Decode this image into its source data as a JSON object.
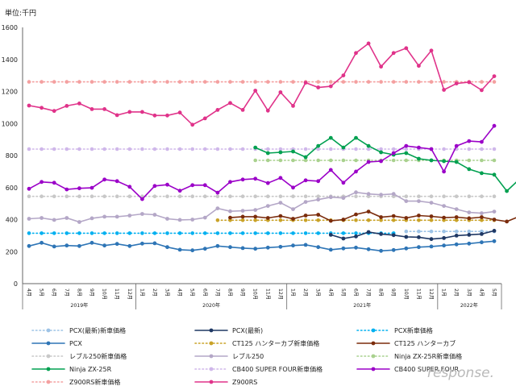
{
  "chart_data": {
    "type": "line",
    "unit_label": "単位:千円",
    "ylim": [
      0,
      1600
    ],
    "yticks": [
      "0",
      "200",
      "400",
      "600",
      "800",
      "1000",
      "1200",
      "1400",
      "1600"
    ],
    "months": [
      "4月",
      "5月",
      "6月",
      "7月",
      "8月",
      "9月",
      "10月",
      "11月",
      "12月",
      "1月",
      "2月",
      "3月",
      "4月",
      "5月",
      "6月",
      "7月",
      "8月",
      "9月",
      "10月",
      "11月",
      "12月",
      "1月",
      "2月",
      "3月",
      "4月",
      "5月",
      "6月",
      "7月",
      "8月",
      "9月",
      "10月",
      "11月",
      "12月",
      "1月",
      "2月",
      "3月",
      "4月",
      "5月"
    ],
    "years": [
      {
        "label": "2019年",
        "start": 0,
        "end": 8
      },
      {
        "label": "2020年",
        "start": 9,
        "end": 20
      },
      {
        "label": "2021年",
        "start": 21,
        "end": 32
      },
      {
        "label": "2022年",
        "start": 33,
        "end": 37
      }
    ],
    "grid": false,
    "legend_position": "bottom",
    "series": [
      {
        "name": "PCX(最新)新車価格",
        "color": "#9dc3e6",
        "style": "dotted",
        "start": 30,
        "values": [
          326,
          326,
          326,
          326,
          326,
          326,
          326,
          326
        ]
      },
      {
        "name": "PCX(最新)",
        "color": "#1f3864",
        "style": "solid",
        "start": 24,
        "values": [
          305,
          282,
          295,
          322,
          310,
          303,
          292,
          290,
          278,
          285,
          300,
          305,
          310,
          330
        ]
      },
      {
        "name": "PCX新車価格",
        "color": "#00b0f0",
        "style": "dotted",
        "start": 0,
        "values": [
          315,
          315,
          315,
          315,
          315,
          315,
          315,
          315,
          315,
          315,
          315,
          315,
          315,
          315,
          315,
          315,
          315,
          315,
          315,
          315,
          315,
          315,
          315,
          315,
          315,
          315,
          315,
          315,
          315,
          315
        ]
      },
      {
        "name": "PCX",
        "color": "#2e75b6",
        "style": "solid",
        "start": 0,
        "values": [
          235,
          255,
          232,
          238,
          235,
          255,
          238,
          248,
          235,
          250,
          252,
          228,
          212,
          208,
          218,
          235,
          228,
          222,
          218,
          225,
          230,
          238,
          242,
          228,
          212,
          220,
          225,
          215,
          205,
          210,
          220,
          228,
          232,
          238,
          245,
          250,
          258,
          265
        ]
      },
      {
        "name": "CT125 ハンターカブ新車価格",
        "color": "#c9a227",
        "style": "dotted",
        "start": 15,
        "values": [
          396,
          396,
          396,
          396,
          396,
          396,
          396,
          396,
          396,
          396,
          396,
          396,
          396,
          396,
          396,
          396,
          396,
          396,
          396,
          396,
          396,
          396,
          396
        ]
      },
      {
        "name": "CT125 ハンターカブ",
        "color": "#7b2c0c",
        "style": "solid",
        "start": 16,
        "values": [
          412,
          418,
          418,
          410,
          422,
          405,
          425,
          430,
          392,
          400,
          432,
          450,
          415,
          422,
          410,
          425,
          420,
          412,
          415,
          408,
          415,
          400,
          388,
          420,
          415
        ]
      },
      {
        "name": "レブル250新車価格",
        "color": "#c8c8c8",
        "style": "dotted",
        "start": 0,
        "values": [
          545,
          545,
          545,
          545,
          545,
          545,
          545,
          545,
          545,
          545,
          545,
          545,
          545,
          545,
          545,
          545,
          545,
          545,
          545,
          545,
          545,
          545,
          545,
          545,
          545,
          545,
          545,
          545,
          545,
          545,
          545,
          545,
          545,
          545,
          545,
          545,
          545,
          545
        ]
      },
      {
        "name": "レブル250",
        "color": "#b4a7c7",
        "style": "solid",
        "start": 0,
        "values": [
          405,
          410,
          398,
          410,
          385,
          408,
          418,
          418,
          425,
          435,
          430,
          405,
          398,
          400,
          412,
          470,
          452,
          455,
          460,
          485,
          505,
          465,
          510,
          525,
          540,
          535,
          570,
          560,
          555,
          560,
          515,
          515,
          505,
          485,
          465,
          445,
          440,
          450
        ]
      },
      {
        "name": "Ninja ZX-25R新車価格",
        "color": "#a9d18e",
        "style": "dotted",
        "start": 18,
        "values": [
          770,
          770,
          770,
          770,
          770,
          770,
          770,
          770,
          770,
          770,
          770,
          770,
          770,
          770,
          770,
          770,
          770,
          770,
          770,
          770
        ]
      },
      {
        "name": "Ninja ZX-25R",
        "color": "#00a050",
        "style": "solid",
        "start": 18,
        "values": [
          850,
          815,
          820,
          825,
          790,
          860,
          910,
          850,
          910,
          860,
          820,
          805,
          815,
          780,
          770,
          765,
          760,
          715,
          690,
          680,
          578,
          652
        ]
      },
      {
        "name": "CB400 SUPER FOUR新車価格",
        "color": "#cfb7ea",
        "style": "dotted",
        "start": 0,
        "values": [
          840,
          840,
          840,
          840,
          840,
          840,
          840,
          840,
          840,
          840,
          840,
          840,
          840,
          840,
          840,
          840,
          840,
          840,
          840,
          840,
          840,
          840,
          840,
          840,
          840,
          840,
          840,
          840,
          840,
          840,
          840,
          840,
          840,
          840,
          840,
          840,
          840,
          840
        ]
      },
      {
        "name": "CB400 SUPER FOUR",
        "color": "#9b00c8",
        "style": "solid",
        "start": 0,
        "values": [
          592,
          635,
          630,
          588,
          595,
          598,
          650,
          640,
          605,
          528,
          610,
          618,
          580,
          615,
          615,
          568,
          635,
          650,
          655,
          628,
          660,
          600,
          645,
          640,
          710,
          630,
          700,
          760,
          765,
          815,
          860,
          850,
          840,
          700,
          860,
          890,
          885,
          985
        ]
      },
      {
        "name": "Z900RS新車価格",
        "color": "#f4a0a0",
        "style": "dotted",
        "start": 0,
        "values": [
          1260,
          1260,
          1260,
          1260,
          1260,
          1260,
          1260,
          1260,
          1260,
          1260,
          1260,
          1260,
          1260,
          1260,
          1260,
          1260,
          1260,
          1260,
          1260,
          1260,
          1260,
          1260,
          1260,
          1260,
          1260,
          1260,
          1260,
          1260,
          1260,
          1260,
          1260,
          1260,
          1260,
          1260,
          1260,
          1260,
          1260,
          1260
        ]
      },
      {
        "name": "Z900RS",
        "color": "#e0338a",
        "style": "solid",
        "start": 0,
        "values": [
          1112,
          1098,
          1078,
          1110,
          1125,
          1090,
          1090,
          1052,
          1072,
          1072,
          1050,
          1050,
          1068,
          992,
          1032,
          1085,
          1128,
          1085,
          1205,
          1080,
          1195,
          1110,
          1255,
          1225,
          1232,
          1300,
          1440,
          1500,
          1355,
          1440,
          1470,
          1360,
          1455,
          1210,
          1250,
          1258,
          1208,
          1295
        ]
      }
    ]
  },
  "watermark": "response."
}
